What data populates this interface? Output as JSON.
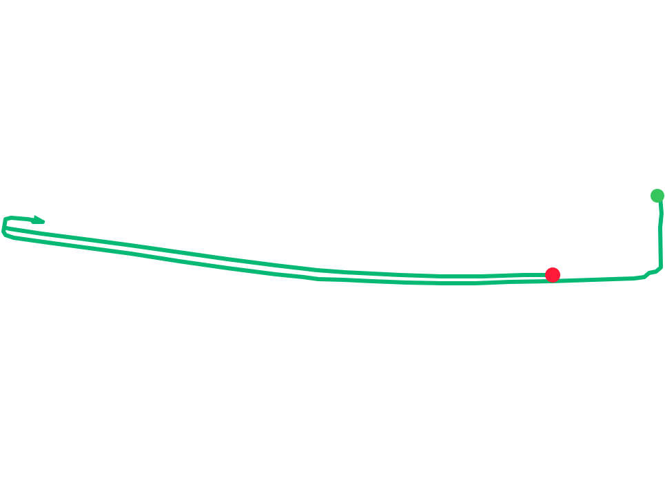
{
  "map": {
    "background_color": "#ffffff",
    "track": {
      "color": "#05b874"
    },
    "start_marker": {
      "icon": "start-point-marker",
      "color": "#36c45c"
    },
    "end_marker": {
      "icon": "end-point-marker",
      "color": "#ff1a3a"
    }
  }
}
